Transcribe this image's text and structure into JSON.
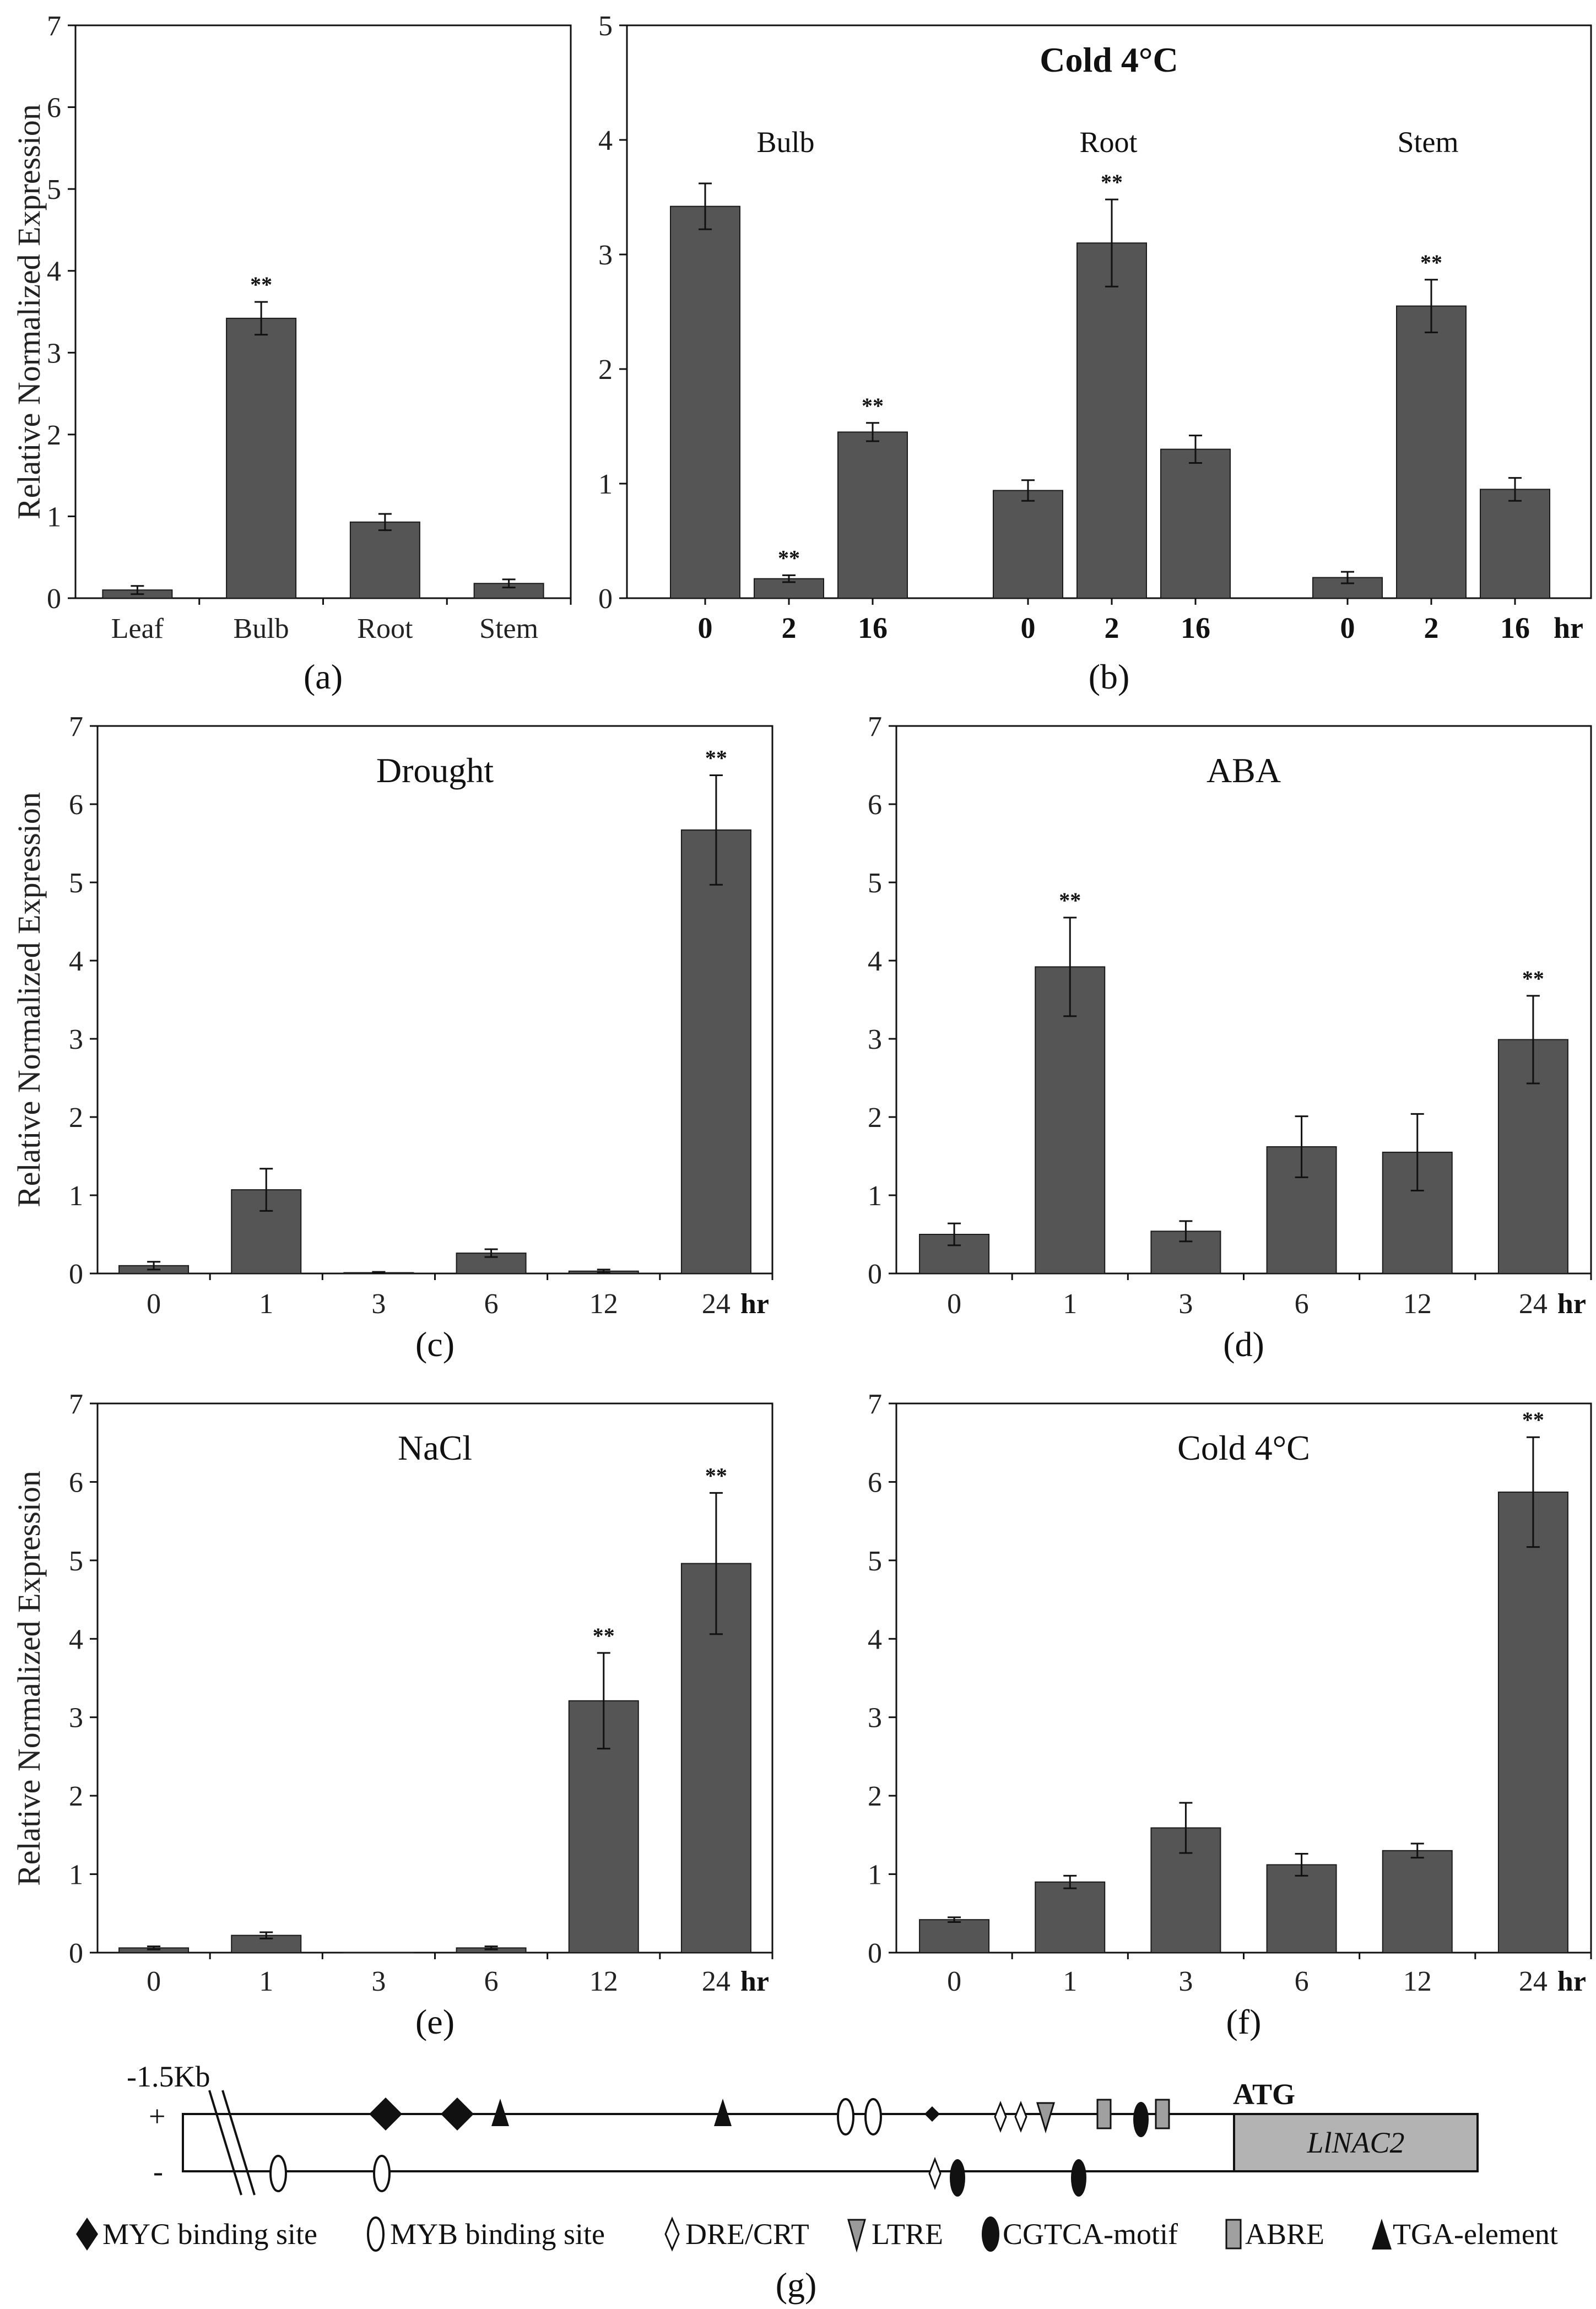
{
  "chart_data": [
    {
      "id": "a",
      "type": "bar",
      "panel_label": "(a)",
      "title": "",
      "ylabel": "Relative Normalized Expression",
      "xlabel": "",
      "ylim": [
        0,
        7
      ],
      "yticks": [
        0,
        1,
        2,
        3,
        4,
        5,
        6,
        7
      ],
      "categories": [
        "Leaf",
        "Bulb",
        "Root",
        "Stem"
      ],
      "values": [
        0.1,
        3.42,
        0.93,
        0.18
      ],
      "errors": [
        0.05,
        0.2,
        0.1,
        0.05
      ],
      "significance": [
        "",
        "**",
        "",
        ""
      ]
    },
    {
      "id": "b",
      "type": "bar",
      "panel_label": "(b)",
      "title": "Cold 4°C",
      "ylabel": "",
      "xlabel": "",
      "ylim": [
        0,
        5
      ],
      "yticks": [
        0,
        1,
        2,
        3,
        4,
        5
      ],
      "groups": [
        {
          "name": "Bulb",
          "categories": [
            "0",
            "2",
            "16"
          ],
          "values": [
            3.42,
            0.17,
            1.45
          ],
          "errors": [
            0.2,
            0.03,
            0.08
          ],
          "significance": [
            "",
            "**",
            "**"
          ]
        },
        {
          "name": "Root",
          "categories": [
            "0",
            "2",
            "16"
          ],
          "values": [
            0.94,
            3.1,
            1.3
          ],
          "errors": [
            0.09,
            0.38,
            0.12
          ],
          "significance": [
            "",
            "**",
            ""
          ]
        },
        {
          "name": "Stem",
          "categories": [
            "0",
            "2",
            "16"
          ],
          "values": [
            0.18,
            2.55,
            0.95
          ],
          "errors": [
            0.05,
            0.23,
            0.1
          ],
          "significance": [
            "",
            "**",
            ""
          ]
        }
      ],
      "unit": "hr"
    },
    {
      "id": "c",
      "type": "bar",
      "panel_label": "(c)",
      "title": "Drought",
      "ylabel": "Relative Normalized Expression",
      "xlabel": "",
      "ylim": [
        0,
        7
      ],
      "yticks": [
        0,
        1,
        2,
        3,
        4,
        5,
        6,
        7
      ],
      "categories": [
        "0",
        "1",
        "3",
        "6",
        "12",
        "24"
      ],
      "values": [
        0.1,
        1.07,
        0.01,
        0.26,
        0.03,
        5.67
      ],
      "errors": [
        0.05,
        0.27,
        0.01,
        0.05,
        0.02,
        0.7
      ],
      "significance": [
        "",
        "",
        "",
        "",
        "",
        "**"
      ],
      "unit": "hr"
    },
    {
      "id": "d",
      "type": "bar",
      "panel_label": "(d)",
      "title": "ABA",
      "ylabel": "",
      "xlabel": "",
      "ylim": [
        0,
        7
      ],
      "yticks": [
        0,
        1,
        2,
        3,
        4,
        5,
        6,
        7
      ],
      "categories": [
        "0",
        "1",
        "3",
        "6",
        "12",
        "24"
      ],
      "values": [
        0.5,
        3.92,
        0.54,
        1.62,
        1.55,
        2.99
      ],
      "errors": [
        0.14,
        0.63,
        0.13,
        0.39,
        0.49,
        0.56
      ],
      "significance": [
        "",
        "**",
        "",
        "",
        "",
        "**"
      ],
      "unit": "hr"
    },
    {
      "id": "e",
      "type": "bar",
      "panel_label": "(e)",
      "title": "NaCl",
      "ylabel": "Relative Normalized Expression",
      "xlabel": "",
      "ylim": [
        0,
        7
      ],
      "yticks": [
        0,
        1,
        2,
        3,
        4,
        5,
        6,
        7
      ],
      "categories": [
        "0",
        "1",
        "3",
        "6",
        "12",
        "24"
      ],
      "values": [
        0.06,
        0.22,
        0.0,
        0.06,
        3.21,
        4.96
      ],
      "errors": [
        0.02,
        0.04,
        0.0,
        0.02,
        0.61,
        0.9
      ],
      "significance": [
        "",
        "",
        "",
        "",
        "**",
        "**"
      ],
      "unit": "hr"
    },
    {
      "id": "f",
      "type": "bar",
      "panel_label": "(f)",
      "title": "Cold 4°C",
      "ylabel": "",
      "xlabel": "",
      "ylim": [
        0,
        7
      ],
      "yticks": [
        0,
        1,
        2,
        3,
        4,
        5,
        6,
        7
      ],
      "categories": [
        "0",
        "1",
        "3",
        "6",
        "12",
        "24"
      ],
      "values": [
        0.42,
        0.9,
        1.59,
        1.12,
        1.3,
        5.87
      ],
      "errors": [
        0.03,
        0.08,
        0.32,
        0.14,
        0.09,
        0.7
      ],
      "significance": [
        "",
        "",
        "",
        "",
        "",
        "**"
      ],
      "unit": "hr"
    }
  ],
  "diagram": {
    "panel_label": "(g)",
    "distance_label": "-1.5Kb",
    "plus_strand": "+",
    "minus_strand": "-",
    "start_codon": "ATG",
    "gene_name": "LlNAC2",
    "legend": [
      {
        "symbol": "filled-diamond",
        "label": "MYC binding site"
      },
      {
        "symbol": "open-ellipse",
        "label": "MYB binding site"
      },
      {
        "symbol": "open-diamond",
        "label": "DRE/CRT"
      },
      {
        "symbol": "gray-down-triangle",
        "label": "LTRE"
      },
      {
        "symbol": "filled-ellipse",
        "label": "CGTCA-motif"
      },
      {
        "symbol": "gray-rectangle",
        "label": "ABRE"
      },
      {
        "symbol": "filled-triangle",
        "label": "TGA-element"
      }
    ]
  }
}
